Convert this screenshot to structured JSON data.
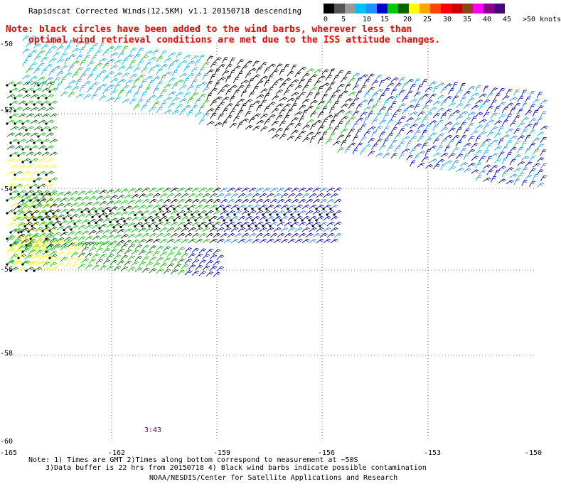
{
  "title": "Rapidscat Corrected Winds(12.5KM) v1.1 20150718 descending",
  "note_line1": "Note: black circles have been added to the wind barbs, wherever less than",
  "note_line2": "optimal wind retrieval conditions are met due to the ISS attitude changes.",
  "legend": {
    "labels": [
      "0",
      "5",
      "10",
      "15",
      "20",
      "25",
      "30",
      "35",
      "40",
      "45",
      ">50 knots"
    ],
    "colors": [
      "#000000",
      "#555555",
      "#999999",
      "#00bfff",
      "#1e90ff",
      "#0000cd",
      "#00cc00",
      "#006600",
      "#ffff00",
      "#ffa500",
      "#ff4500",
      "#ff0000",
      "#cc0000",
      "#8b4513",
      "#ff00ff",
      "#8b008b",
      "#4b0082"
    ]
  },
  "lat_labels": [
    "-52",
    "-54",
    "-56",
    "-58",
    "-60"
  ],
  "lat_top_label": "-50",
  "lon_labels": [
    "-165",
    "-162",
    "-159",
    "-156",
    "-153",
    "-150"
  ],
  "time_label": "3:43",
  "footer": {
    "line1": "Note: 1) Times are GMT 2)Times along bottom correspond to measurement at ~50S",
    "line2": "3)Data buffer is 22 hrs from 20150718 4) Black wind barbs indicate possible contamination",
    "line3": "NOAA/NESDIS/Center for Satellite Applications and Research"
  }
}
